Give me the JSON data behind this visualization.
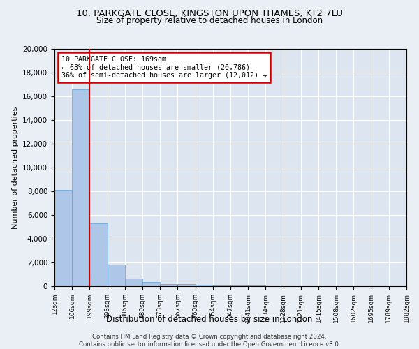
{
  "title1": "10, PARKGATE CLOSE, KINGSTON UPON THAMES, KT2 7LU",
  "title2": "Size of property relative to detached houses in London",
  "xlabel": "Distribution of detached houses by size in London",
  "ylabel": "Number of detached properties",
  "annotation_title": "10 PARKGATE CLOSE: 169sqm",
  "annotation_line2": "← 63% of detached houses are smaller (20,786)",
  "annotation_line3": "36% of semi-detached houses are larger (12,012) →",
  "footer1": "Contains HM Land Registry data © Crown copyright and database right 2024.",
  "footer2": "Contains public sector information licensed under the Open Government Licence v3.0.",
  "bar_values": [
    8100,
    16600,
    5300,
    1800,
    650,
    330,
    190,
    150,
    120,
    80,
    50,
    30,
    20,
    15,
    10,
    8,
    5,
    4,
    3,
    2
  ],
  "bin_labels": [
    "12sqm",
    "106sqm",
    "199sqm",
    "293sqm",
    "386sqm",
    "480sqm",
    "573sqm",
    "667sqm",
    "760sqm",
    "854sqm",
    "947sqm",
    "1041sqm",
    "1134sqm",
    "1228sqm",
    "1321sqm",
    "1415sqm",
    "1508sqm",
    "1602sqm",
    "1695sqm",
    "1789sqm",
    "1882sqm"
  ],
  "bar_color": "#aec6e8",
  "bar_edge_color": "#5a9fd4",
  "property_bin_index": 1,
  "annotation_box_color": "#cc0000",
  "ylim": [
    0,
    20000
  ],
  "yticks": [
    0,
    2000,
    4000,
    6000,
    8000,
    10000,
    12000,
    14000,
    16000,
    18000,
    20000
  ],
  "background_color": "#eaeff5",
  "plot_bg_color": "#dde6f0",
  "grid_color": "#ffffff",
  "figsize": [
    6.0,
    5.0
  ],
  "dpi": 100
}
